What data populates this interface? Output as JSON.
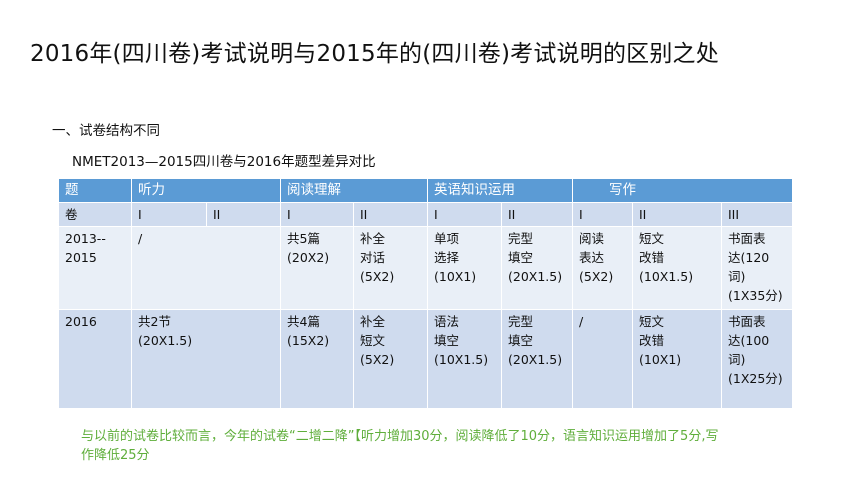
{
  "page": {
    "title": "2016年(四川卷)考试说明与2015年的(四川卷)考试说明的区别之处",
    "section": "一、试卷结构不同",
    "subtitle": "NMET2013—2015四川卷与2016年题型差异对比"
  },
  "table": {
    "header": {
      "col0": "题",
      "listening": "听力",
      "reading": "阅读理解",
      "knowledge": "英语知识运用",
      "writing": "写作"
    },
    "subheader": {
      "col0": "卷",
      "listening_1": "I",
      "listening_2": "II",
      "reading_1": "I",
      "reading_2": "II",
      "knowledge_1": "I",
      "knowledge_2": "II",
      "writing_1": "I",
      "writing_2": "II",
      "writing_3": "III"
    },
    "rows": [
      {
        "year": "2013--\n2015",
        "listening": "/",
        "reading_1": "共5篇\n(20X2)",
        "reading_2": "补全\n对话\n(5X2)",
        "knowledge_1": "单项\n选择\n(10X1)",
        "knowledge_2": "完型\n填空\n(20X1.5)",
        "writing_1": "阅读\n表达\n(5X2)",
        "writing_2": "短文\n改错\n(10X1.5)",
        "writing_3": "书面表\n达(120\n词)\n(1X35分)"
      },
      {
        "year": "2016",
        "listening": "共2节\n(20X1.5)",
        "reading_1": "共4篇\n(15X2)",
        "reading_2": "补全\n短文\n(5X2)",
        "knowledge_1": "语法\n填空\n(10X1.5)",
        "knowledge_2": "完型\n填空\n(20X1.5)",
        "writing_1": "/",
        "writing_2": "短文\n改错\n(10X1)",
        "writing_3": "书面表\n达(100\n词)\n(1X25分)"
      }
    ]
  },
  "note": "与以前的试卷比较而言，今年的试卷“二增二降”【听力增加30分，阅读降低了10分，语言知识运用增加了5分,写作降低25分",
  "colors": {
    "header_bg": "#5b9bd5",
    "row_dark": "#cfdbee",
    "row_light": "#e9eff7",
    "note_text": "#5fae3b"
  }
}
